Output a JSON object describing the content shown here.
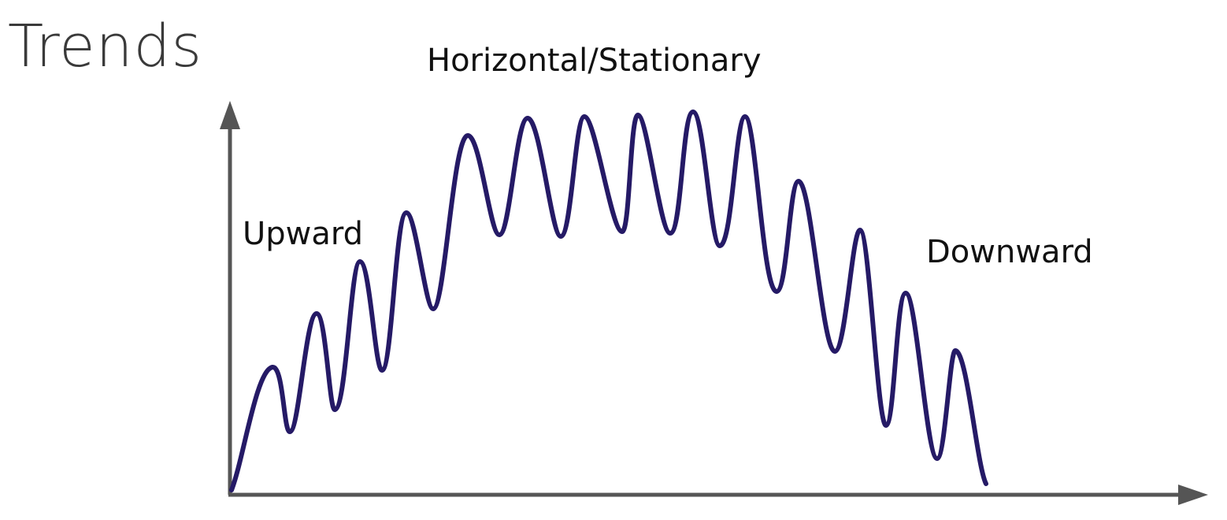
{
  "title": "Trends",
  "labels": {
    "upward": "Upward",
    "horizontal": "Horizontal/Stationary",
    "downward": "Downward"
  },
  "colors": {
    "axis": "#555555",
    "curve": "#251a66",
    "title": "#3a3a3a",
    "label": "#111111"
  }
}
